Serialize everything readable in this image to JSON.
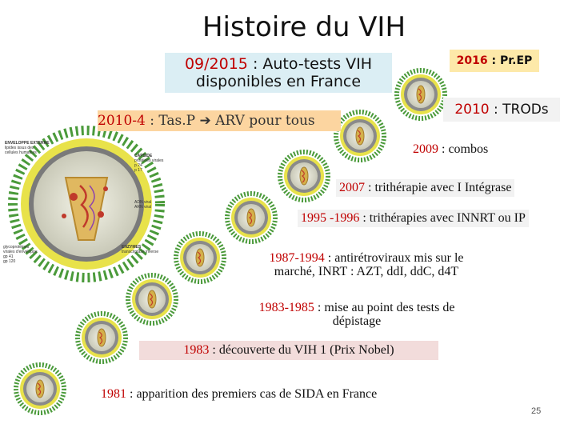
{
  "title": "Histoire du VIH",
  "events": {
    "autotests": {
      "year": "09/2015",
      "rest": " : Auto-tests VIH",
      "line2": "disponibles en France"
    },
    "prep": {
      "year": "2016",
      "rest": " : Pr.EP"
    },
    "tasp": {
      "year": "2010-4",
      "rest": " : Tas.P ",
      "arrow": "➔",
      "tail": " ARV pour tous"
    },
    "trods": {
      "year": "2010",
      "rest": " : TRODs"
    },
    "combos": {
      "year": "2009",
      "rest": " : combos"
    },
    "integrase": {
      "year": "2007",
      "rest": " : trithérapie avec I Intégrase"
    },
    "innrt": {
      "year": "1995 -1996",
      "rest": " : trithérapies avec INNRT ou IP"
    },
    "anti": {
      "year": "1987-1994",
      "rest": " : antirétroviraux mis sur le",
      "line2": "marché, INRT : AZT, ddI, ddC, d4T"
    },
    "tests": {
      "year": "1983-1985",
      "rest": " : mise au point des tests de",
      "line2": "dépistage"
    },
    "decouverte": {
      "year": "1983",
      "rest": " : découverte du VIH 1 (Prix Nobel)"
    },
    "apparition": {
      "year": "1981",
      "rest": " : apparition des premiers cas de SIDA en France"
    }
  },
  "diagram_labels": {
    "enveloppe": "ENVELOPPE EXTERNE",
    "lipides": "lipides issus des",
    "cellules": "cellules humaines",
    "capside": "CAPSIDE",
    "proteines": "protéines virales",
    "p24": "p 24",
    "p17": "p 17",
    "adn": "ADN viral",
    "arn": "ARN viral",
    "glyco": "glycoprotéines",
    "glyco2": "virales d'enveloppe",
    "gp41": "gp 41",
    "gp120": "gp 120",
    "enzymes": "ENZYMES",
    "rt": "transcriptase inverse"
  },
  "page_number": "25",
  "colors": {
    "red": "#c00000",
    "blue_box": "#dbeef4",
    "yellow_box": "#fde9a9",
    "orange_box": "#fcd5a0",
    "pink_box": "#f2dcdb"
  }
}
